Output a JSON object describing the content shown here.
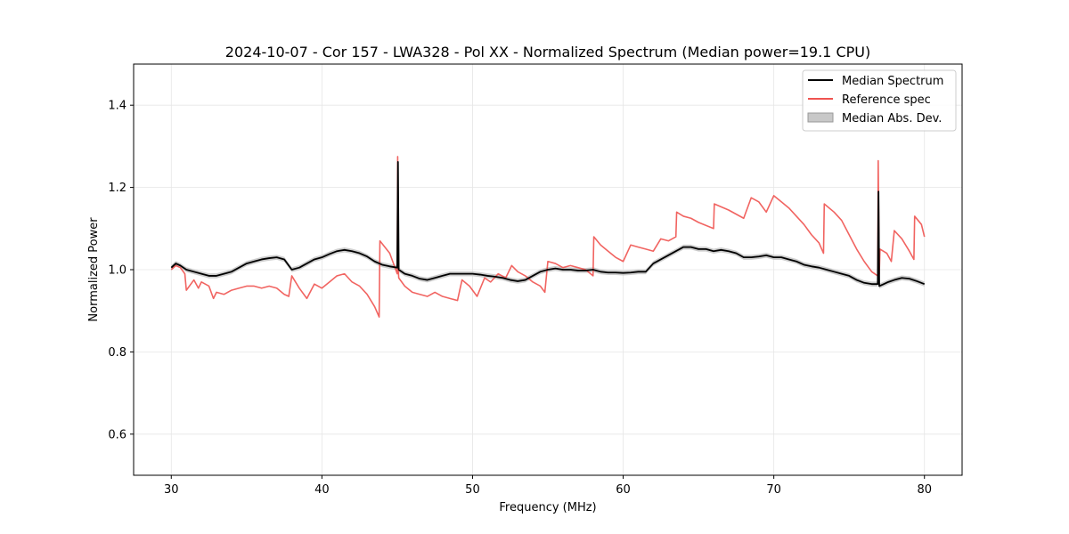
{
  "chart_data": {
    "type": "line",
    "title": "2024-10-07 - Cor 157 - LWA328 - Pol XX - Normalized Spectrum (Median power=19.1 CPU)",
    "xlabel": "Frequency (MHz)",
    "ylabel": "Normalized Power",
    "xlim": [
      27.5,
      82.5
    ],
    "ylim": [
      0.5,
      1.5
    ],
    "xticks": [
      30,
      40,
      50,
      60,
      70,
      80
    ],
    "yticks": [
      0.6,
      0.8,
      1.0,
      1.2,
      1.4
    ],
    "grid": true,
    "legend_position": "top-right",
    "legend": [
      "Median Spectrum",
      "Reference spec",
      "Median Abs. Dev."
    ],
    "series": [
      {
        "name": "Median Spectrum",
        "color": "#000000",
        "x": [
          30.0,
          30.3,
          30.6,
          31.0,
          31.5,
          32.0,
          32.5,
          33.0,
          33.5,
          34.0,
          34.5,
          35.0,
          35.5,
          36.0,
          36.5,
          37.0,
          37.5,
          37.8,
          38.0,
          38.5,
          39.0,
          39.5,
          40.0,
          40.5,
          41.0,
          41.5,
          42.0,
          42.5,
          43.0,
          43.5,
          44.0,
          44.5,
          45.0,
          45.05,
          45.1,
          45.5,
          46.0,
          46.5,
          47.0,
          47.5,
          48.0,
          48.5,
          49.0,
          49.5,
          50.0,
          50.5,
          51.0,
          51.5,
          52.0,
          52.5,
          53.0,
          53.5,
          54.0,
          54.5,
          55.0,
          55.5,
          56.0,
          56.5,
          57.0,
          57.5,
          58.0,
          58.5,
          59.0,
          59.5,
          60.0,
          60.5,
          61.0,
          61.5,
          62.0,
          62.5,
          63.0,
          63.5,
          64.0,
          64.5,
          65.0,
          65.5,
          66.0,
          66.5,
          67.0,
          67.5,
          68.0,
          68.5,
          69.0,
          69.5,
          70.0,
          70.5,
          71.0,
          71.5,
          72.0,
          72.5,
          73.0,
          73.5,
          74.0,
          74.5,
          75.0,
          75.5,
          76.0,
          76.5,
          76.9,
          76.95,
          77.0,
          77.3,
          77.6,
          78.0,
          78.5,
          79.0,
          79.5,
          80.0
        ],
        "values": [
          1.005,
          1.015,
          1.01,
          1.0,
          0.995,
          0.99,
          0.985,
          0.985,
          0.99,
          0.995,
          1.005,
          1.015,
          1.02,
          1.025,
          1.028,
          1.03,
          1.025,
          1.01,
          1.0,
          1.005,
          1.015,
          1.025,
          1.03,
          1.038,
          1.045,
          1.048,
          1.045,
          1.04,
          1.032,
          1.02,
          1.012,
          1.008,
          1.005,
          1.262,
          1.0,
          0.99,
          0.985,
          0.978,
          0.975,
          0.98,
          0.985,
          0.99,
          0.99,
          0.99,
          0.99,
          0.988,
          0.985,
          0.983,
          0.98,
          0.975,
          0.972,
          0.975,
          0.985,
          0.995,
          1.0,
          1.003,
          1.0,
          1.0,
          0.998,
          0.998,
          1.0,
          0.995,
          0.993,
          0.993,
          0.992,
          0.993,
          0.995,
          0.995,
          1.015,
          1.025,
          1.035,
          1.045,
          1.055,
          1.055,
          1.05,
          1.05,
          1.045,
          1.048,
          1.045,
          1.04,
          1.03,
          1.03,
          1.032,
          1.035,
          1.03,
          1.03,
          1.025,
          1.02,
          1.012,
          1.008,
          1.005,
          1.0,
          0.995,
          0.99,
          0.985,
          0.975,
          0.968,
          0.965,
          0.965,
          1.19,
          0.96,
          0.965,
          0.97,
          0.975,
          0.98,
          0.978,
          0.972,
          0.965
        ]
      },
      {
        "name": "Reference spec",
        "color": "#ef5350",
        "x": [
          30.0,
          30.3,
          30.6,
          30.9,
          31.0,
          31.5,
          31.8,
          32.0,
          32.5,
          32.8,
          33.0,
          33.5,
          34.0,
          34.5,
          35.0,
          35.5,
          36.0,
          36.5,
          37.0,
          37.5,
          37.8,
          38.0,
          38.5,
          39.0,
          39.5,
          40.0,
          40.5,
          41.0,
          41.5,
          42.0,
          42.5,
          43.0,
          43.5,
          43.8,
          43.85,
          44.5,
          45.0,
          45.03,
          45.07,
          45.1,
          45.5,
          46.0,
          46.5,
          47.0,
          47.5,
          48.0,
          48.5,
          49.0,
          49.3,
          49.8,
          50.3,
          50.8,
          51.2,
          51.7,
          52.2,
          52.6,
          53.0,
          53.5,
          54.0,
          54.5,
          54.8,
          55.0,
          55.5,
          56.0,
          56.5,
          57.0,
          57.5,
          58.0,
          58.05,
          58.5,
          59.0,
          59.5,
          60.0,
          60.5,
          61.0,
          61.5,
          62.0,
          62.5,
          63.0,
          63.5,
          63.55,
          64.0,
          64.5,
          65.0,
          66.0,
          66.05,
          67.0,
          67.5,
          68.0,
          68.5,
          69.0,
          69.5,
          70.0,
          70.5,
          71.0,
          71.5,
          72.0,
          72.5,
          73.0,
          73.3,
          73.35,
          74.0,
          74.5,
          75.0,
          75.5,
          76.0,
          76.5,
          76.9,
          76.93,
          77.0,
          77.05,
          77.5,
          77.8,
          78.0,
          78.5,
          79.0,
          79.3,
          79.35,
          79.8,
          80.0
        ],
        "values": [
          1.0,
          1.01,
          1.005,
          0.99,
          0.95,
          0.975,
          0.955,
          0.97,
          0.96,
          0.93,
          0.945,
          0.94,
          0.95,
          0.955,
          0.96,
          0.96,
          0.955,
          0.96,
          0.955,
          0.94,
          0.935,
          0.985,
          0.955,
          0.93,
          0.965,
          0.955,
          0.97,
          0.985,
          0.99,
          0.97,
          0.96,
          0.94,
          0.91,
          0.885,
          1.07,
          1.04,
          0.99,
          1.275,
          1.0,
          0.98,
          0.96,
          0.945,
          0.94,
          0.935,
          0.945,
          0.935,
          0.93,
          0.925,
          0.975,
          0.96,
          0.935,
          0.98,
          0.97,
          0.99,
          0.98,
          1.01,
          0.995,
          0.985,
          0.97,
          0.96,
          0.945,
          1.02,
          1.015,
          1.005,
          1.01,
          1.005,
          1.0,
          0.985,
          1.08,
          1.06,
          1.045,
          1.03,
          1.02,
          1.06,
          1.055,
          1.05,
          1.045,
          1.075,
          1.07,
          1.08,
          1.14,
          1.13,
          1.125,
          1.115,
          1.1,
          1.16,
          1.145,
          1.135,
          1.125,
          1.175,
          1.165,
          1.14,
          1.18,
          1.165,
          1.15,
          1.13,
          1.11,
          1.085,
          1.065,
          1.04,
          1.16,
          1.14,
          1.12,
          1.085,
          1.05,
          1.02,
          0.995,
          0.985,
          1.265,
          0.99,
          1.05,
          1.04,
          1.02,
          1.095,
          1.075,
          1.045,
          1.025,
          1.13,
          1.11,
          1.08
        ]
      }
    ],
    "band": {
      "name": "Median Abs. Dev.",
      "color": "#c8c8c8",
      "width": 0.006
    }
  }
}
